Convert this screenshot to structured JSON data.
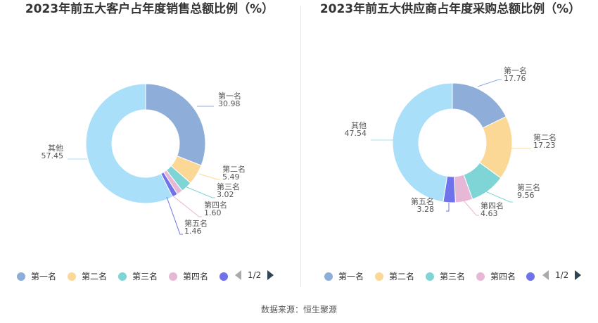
{
  "source": "数据来源：恒生聚源",
  "chart_data": [
    {
      "type": "pie",
      "title": "2023年前五大客户占年度销售总额比例（%）",
      "categories": [
        "第一名",
        "第二名",
        "第三名",
        "第四名",
        "第五名",
        "其他"
      ],
      "values": [
        30.98,
        5.49,
        3.02,
        1.6,
        1.46,
        57.45
      ],
      "value_labels": [
        "30.98",
        "5.49",
        "3.02",
        "1.60",
        "1.46",
        "57.45"
      ],
      "colors": [
        "#8eadd9",
        "#fcd896",
        "#7fd5d5",
        "#e7b7d6",
        "#6f72ea",
        "#aadff9"
      ],
      "legend": {
        "position": "bottom",
        "items": [
          "第一名",
          "第二名",
          "第三名",
          "第四名"
        ],
        "page": "1/2"
      }
    },
    {
      "type": "pie",
      "title": "2023年前五大供应商占年度采购总额比例（%）",
      "categories": [
        "第一名",
        "第二名",
        "第三名",
        "第四名",
        "第五名",
        "其他"
      ],
      "values": [
        17.76,
        17.23,
        9.56,
        4.63,
        3.28,
        47.54
      ],
      "value_labels": [
        "17.76",
        "17.23",
        "9.56",
        "4.63",
        "3.28",
        "47.54"
      ],
      "colors": [
        "#8eadd9",
        "#fcd896",
        "#7fd5d5",
        "#e7b7d6",
        "#6f72ea",
        "#aadff9"
      ],
      "legend": {
        "position": "bottom",
        "items": [
          "第一名",
          "第二名",
          "第三名",
          "第四名"
        ],
        "page": "1/2"
      }
    }
  ]
}
